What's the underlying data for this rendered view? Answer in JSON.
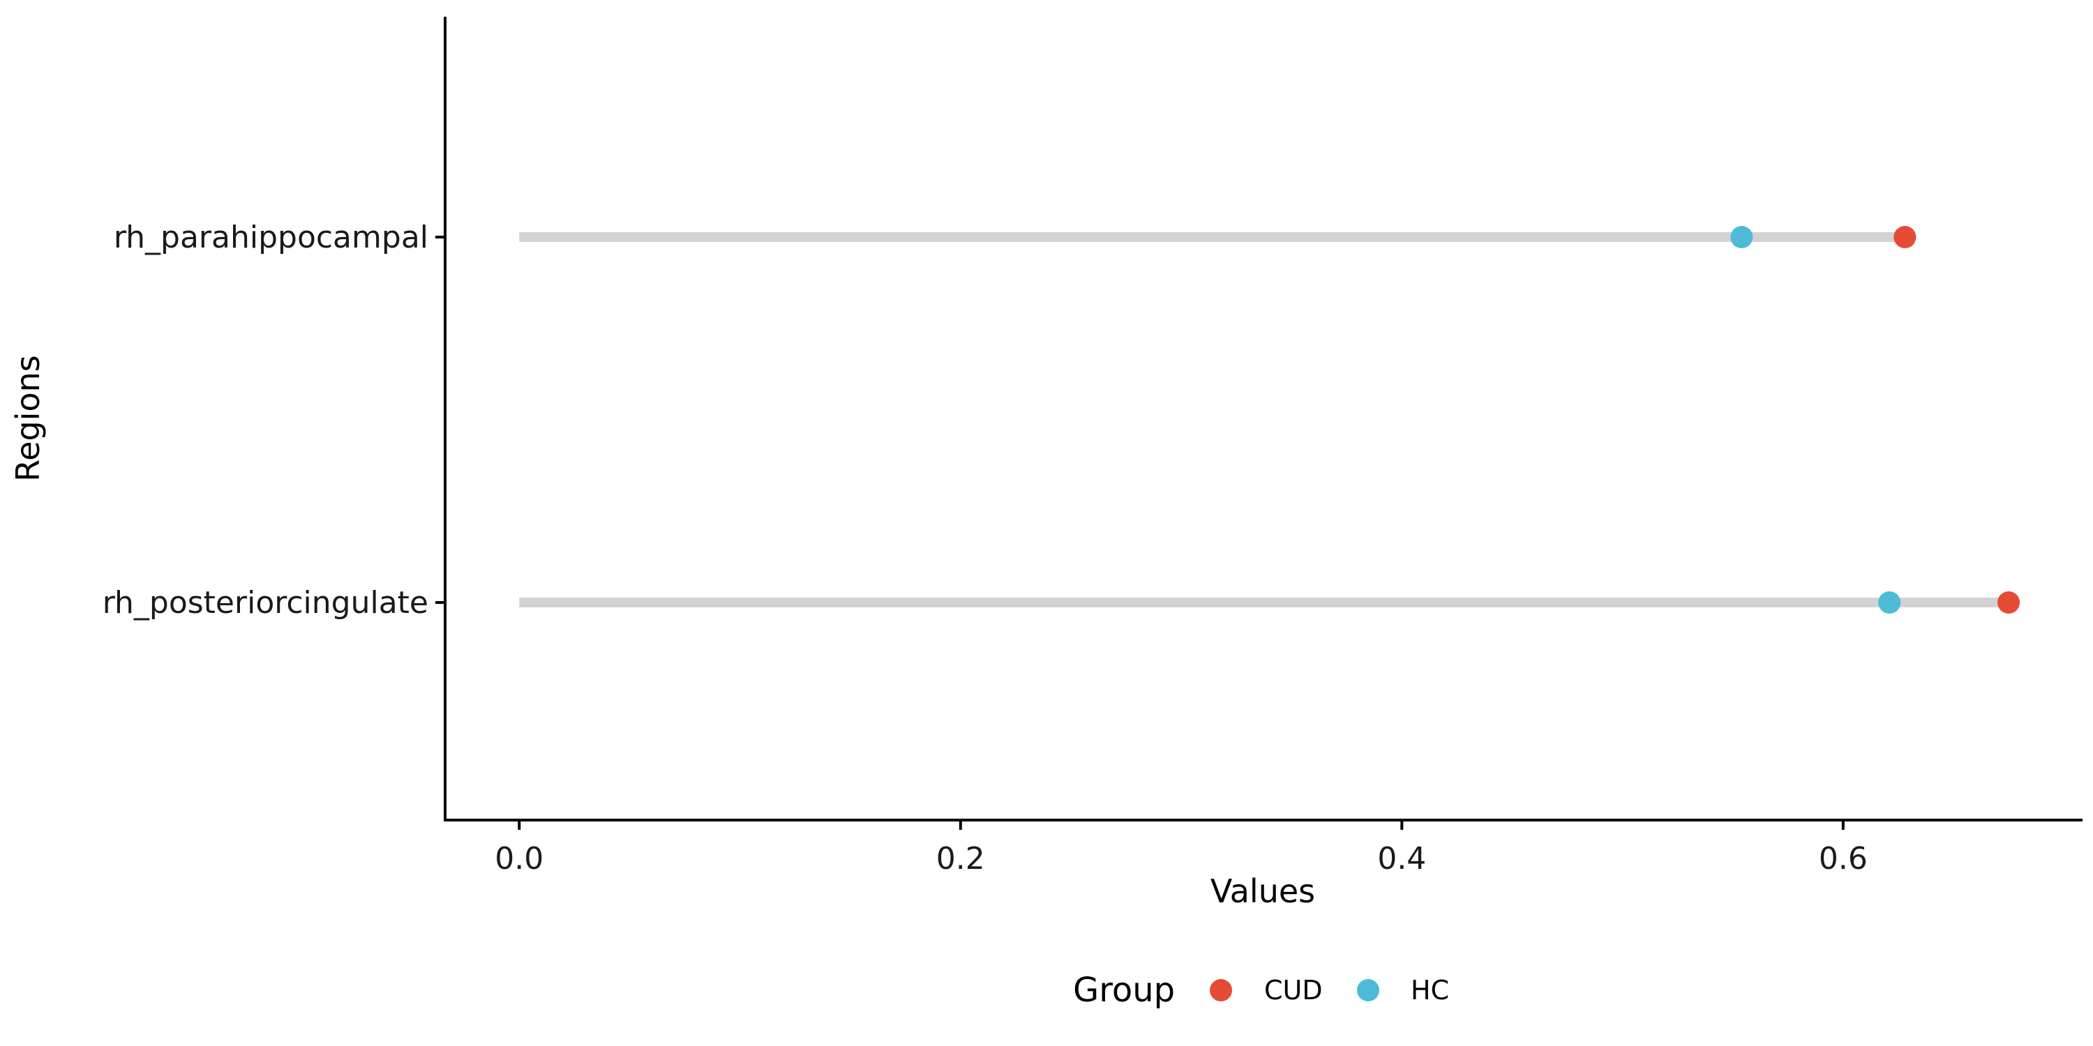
{
  "chart_data": {
    "type": "dumbbell",
    "title": "",
    "xlabel": "Values",
    "ylabel": "Regions",
    "xlim": [
      -0.0336,
      0.7085
    ],
    "x_ticks": [
      "0.0",
      "0.2",
      "0.4",
      "0.6"
    ],
    "x_tick_values": [
      0.0,
      0.2,
      0.4,
      0.6
    ],
    "categories": [
      "rh_parahippocampal",
      "rh_posteriorcingulate"
    ],
    "segment_start": [
      0.0,
      0.0
    ],
    "segment_color": "#d3d3d3",
    "series": [
      {
        "name": "CUD",
        "color": "#e64b35",
        "values": [
          0.628,
          0.675
        ]
      },
      {
        "name": "HC",
        "color": "#4dbbd5",
        "values": [
          0.554,
          0.621
        ]
      }
    ],
    "legend": {
      "title": "Group",
      "position": "bottom"
    },
    "grid": false
  }
}
